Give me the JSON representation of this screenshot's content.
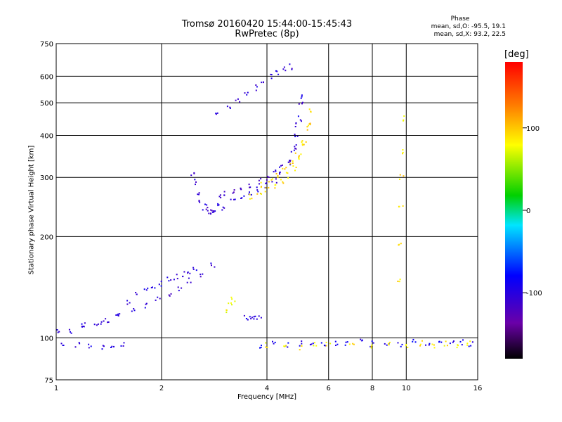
{
  "title_line1": "Tromsø 20160420 15:44:00-15:45:43",
  "title_line2": "RwPretec (8p)",
  "phase_header": "Phase",
  "phase_o": "mean, sd,O:  -95.5, 19.1",
  "phase_x": "mean, sd,X:  93.2, 22.5",
  "colorbar": {
    "unit_label": "[deg]",
    "ticks": [
      {
        "value": 100,
        "label": "100"
      },
      {
        "value": 0,
        "label": "0"
      },
      {
        "value": -100,
        "label": "-100"
      }
    ],
    "range": [
      -180,
      180
    ]
  },
  "chart_data": {
    "type": "scatter",
    "xlabel": "Frequency [MHz]",
    "ylabel": "Stationary phase Virtual Height [km]",
    "x_scale": "log",
    "y_scale": "log",
    "xlim": [
      1,
      16
    ],
    "ylim": [
      75,
      750
    ],
    "x_ticks": [
      {
        "value": 1,
        "label": "1"
      },
      {
        "value": 2,
        "label": "2"
      },
      {
        "value": 4,
        "label": "4"
      },
      {
        "value": 6,
        "label": "6"
      },
      {
        "value": 8,
        "label": "8"
      },
      {
        "value": 10,
        "label": "10"
      },
      {
        "value": 16,
        "label": "16"
      }
    ],
    "y_ticks": [
      {
        "value": 75,
        "label": "75"
      },
      {
        "value": 100,
        "label": "100"
      },
      {
        "value": 200,
        "label": "200"
      },
      {
        "value": 300,
        "label": "300"
      },
      {
        "value": 400,
        "label": "400"
      },
      {
        "value": 500,
        "label": "500"
      },
      {
        "value": 600,
        "label": "600"
      },
      {
        "value": 750,
        "label": "750"
      }
    ],
    "grid": true,
    "series": [
      {
        "mode": "O",
        "traces": [
          {
            "f": [
              1.02,
              1.1,
              1.2,
              1.3,
              1.4,
              1.5,
              1.6,
              1.7,
              1.8,
              1.9,
              2.0,
              2.1,
              2.2,
              2.3,
              2.4,
              2.5
            ],
            "h": [
              104,
              105,
              108,
              110,
              112,
              118,
              128,
              135,
              138,
              142,
              145,
              150,
              152,
              155,
              158,
              160
            ],
            "phase": -100
          },
          {
            "f": [
              1.2,
              1.35,
              1.5,
              1.65,
              1.8,
              1.95,
              2.1,
              2.25,
              2.4,
              2.6,
              2.8
            ],
            "h": [
              110,
              112,
              115,
              120,
              125,
              130,
              135,
              140,
              148,
              155,
              165
            ],
            "phase": -105
          },
          {
            "f": [
              1.05,
              1.15,
              1.25,
              1.35,
              1.45,
              1.55
            ],
            "h": [
              96,
              95,
              94,
              94,
              94,
              95
            ],
            "phase": -100
          },
          {
            "f": [
              2.45,
              2.5,
              2.55,
              2.6,
              2.65,
              2.7,
              2.75,
              2.8,
              2.85,
              2.9,
              2.95,
              3.0
            ],
            "h": [
              310,
              290,
              270,
              255,
              245,
              240,
              238,
              236,
              240,
              250,
              262,
              270
            ],
            "phase": -105
          },
          {
            "f": [
              3.0,
              3.2,
              3.4,
              3.6,
              3.8,
              4.0,
              4.2,
              4.4,
              4.6,
              4.75,
              4.85,
              4.95,
              5.0
            ],
            "h": [
              245,
              255,
              262,
              268,
              275,
              285,
              295,
              310,
              330,
              360,
              400,
              450,
              520
            ],
            "phase": -100
          },
          {
            "f": [
              3.2,
              3.4,
              3.6,
              3.8,
              4.0,
              4.2,
              4.4,
              4.6,
              4.8,
              4.9,
              5.0
            ],
            "h": [
              270,
              280,
              285,
              292,
              300,
              310,
              320,
              340,
              370,
              430,
              500
            ],
            "phase": -110
          },
          {
            "f": [
              2.9,
              3.1,
              3.3,
              3.5,
              3.7,
              3.9,
              4.1,
              4.3,
              4.5,
              4.65
            ],
            "h": [
              470,
              490,
              510,
              530,
              555,
              580,
              600,
              615,
              630,
              640
            ],
            "phase": -105
          },
          {
            "f": [
              3.5,
              3.6,
              3.7,
              3.8
            ],
            "h": [
              115,
              115,
              115,
              115
            ],
            "phase": -95
          },
          {
            "f": [
              3.8,
              4.2,
              4.6,
              5.0,
              5.4,
              5.8,
              6.3,
              6.8,
              7.4,
              8.0,
              8.8,
              9.6,
              10.5,
              11.5,
              12.5,
              13.5,
              14.5,
              15.3
            ],
            "h": [
              95,
              96,
              95,
              96,
              95,
              95,
              96,
              96,
              97,
              96,
              97,
              96,
              97,
              97,
              96,
              96,
              97,
              96
            ],
            "phase": -90
          }
        ]
      },
      {
        "mode": "X",
        "traces": [
          {
            "f": [
              3.6,
              3.8,
              4.0,
              4.2,
              4.4,
              4.6,
              4.8,
              5.0,
              5.1,
              5.2,
              5.3
            ],
            "h": [
              262,
              268,
              275,
              282,
              292,
              305,
              320,
              345,
              380,
              420,
              470
            ],
            "phase": 90
          },
          {
            "f": [
              3.9,
              4.1,
              4.3,
              4.5,
              4.7,
              4.9,
              5.1,
              5.25
            ],
            "h": [
              285,
              295,
              305,
              315,
              330,
              350,
              380,
              430
            ],
            "phase": 95
          },
          {
            "f": [
              3.1,
              3.15,
              3.2
            ],
            "h": [
              120,
              125,
              130
            ],
            "phase": 80
          },
          {
            "f": [
              9.6,
              9.62,
              9.65,
              9.68,
              9.7,
              9.72
            ],
            "h": [
              150,
              190,
              250,
              300,
              360,
              450
            ],
            "phase": 90
          },
          {
            "f": [
              4.0,
              4.5,
              5.0,
              5.5,
              6.0,
              7.0,
              8.0,
              9.0,
              10.0,
              11.0,
              12.0,
              13.0,
              14.0,
              15.0
            ],
            "h": [
              95,
              95,
              94,
              95,
              95,
              96,
              95,
              96,
              95,
              96,
              95,
              96,
              95,
              96
            ],
            "phase": 85
          }
        ]
      }
    ]
  }
}
